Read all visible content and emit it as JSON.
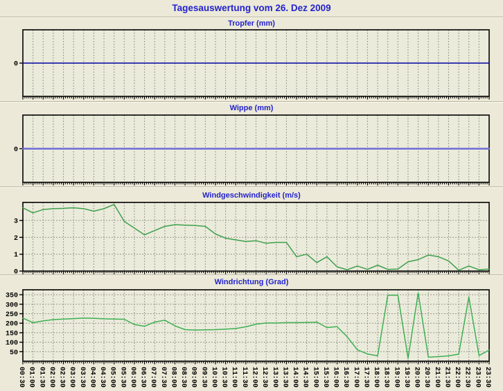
{
  "page": {
    "title": "Tagesauswertung vom 26. Dez 2009"
  },
  "colors": {
    "page_bg": "#ece9d8",
    "plot_bg": "#ebebdc",
    "plot_border": "#000000",
    "grid": "#99998a",
    "title_blue": "#2222cd",
    "tropfer_line": "#0000a0",
    "wippe_line": "#6b6bd6",
    "windspeed_line": "#3da04b",
    "winddir_line": "#3cb051"
  },
  "x_axis": {
    "categories": [
      "00:30",
      "01:00",
      "01:30",
      "02:00",
      "02:30",
      "03:00",
      "03:30",
      "04:00",
      "04:30",
      "05:00",
      "05:30",
      "06:00",
      "06:30",
      "07:00",
      "07:30",
      "08:00",
      "08:30",
      "09:00",
      "09:30",
      "10:00",
      "10:30",
      "11:00",
      "11:30",
      "12:00",
      "12:30",
      "13:00",
      "13:30",
      "14:00",
      "14:30",
      "15:00",
      "15:30",
      "16:00",
      "16:30",
      "17:00",
      "17:30",
      "18:00",
      "18:30",
      "19:00",
      "19:30",
      "20:00",
      "20:30",
      "21:00",
      "21:30",
      "22:00",
      "22:30",
      "23:00",
      "23:30"
    ]
  },
  "chart_data": [
    {
      "type": "line",
      "title": "Tropfer (mm)",
      "ylim": [
        -1,
        1
      ],
      "yticks": [
        0
      ],
      "grid_h": false,
      "flat_value": 0,
      "line_color": "#0000a0",
      "line_width": 1.4,
      "show_x_labels": false
    },
    {
      "type": "line",
      "title": "Wippe (mm)",
      "ylim": [
        -1,
        1
      ],
      "yticks": [
        0
      ],
      "grid_h": false,
      "flat_value": 0,
      "line_color": "#6b6bd6",
      "line_width": 2.4,
      "show_x_labels": false
    },
    {
      "type": "line",
      "title": "Windgeschwindigkeit (m/s)",
      "ylim": [
        0,
        4.07
      ],
      "yticks": [
        0,
        1,
        2,
        3
      ],
      "grid_h": true,
      "line_color": "#3da04b",
      "line_width": 1.5,
      "show_x_labels": false,
      "values": [
        3.75,
        3.45,
        3.65,
        3.7,
        3.72,
        3.75,
        3.7,
        3.55,
        3.7,
        3.95,
        2.95,
        2.55,
        2.15,
        2.4,
        2.65,
        2.75,
        2.72,
        2.7,
        2.65,
        2.2,
        1.95,
        1.85,
        1.75,
        1.8,
        1.65,
        1.7,
        1.7,
        0.85,
        1.0,
        0.5,
        0.85,
        0.25,
        0.08,
        0.3,
        0.1,
        0.35,
        0.1,
        0.12,
        0.55,
        0.68,
        0.95,
        0.85,
        0.6,
        0.05,
        0.3,
        0.08,
        0.12
      ]
    },
    {
      "type": "line",
      "title": "Windrichtung (Grad)",
      "ylim": [
        0,
        376
      ],
      "yticks": [
        50,
        100,
        150,
        200,
        250,
        300,
        350
      ],
      "grid_h": true,
      "line_color": "#3cb051",
      "line_width": 1.5,
      "show_x_labels": true,
      "values": [
        227,
        203,
        212,
        219,
        222,
        224,
        227,
        226,
        223,
        222,
        221,
        193,
        184,
        206,
        216,
        186,
        166,
        164,
        165,
        166,
        169,
        172,
        181,
        195,
        201,
        201,
        203,
        203,
        204,
        206,
        177,
        182,
        128,
        60,
        38,
        28,
        347,
        347,
        15,
        360,
        21,
        24,
        28,
        37,
        338,
        30,
        58
      ]
    }
  ]
}
